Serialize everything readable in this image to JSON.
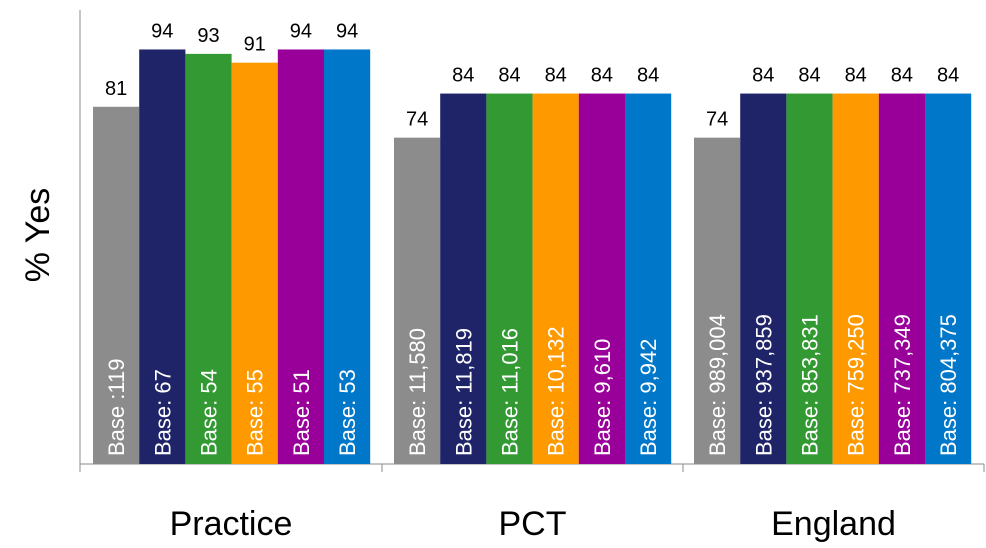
{
  "chart_data": {
    "type": "bar",
    "ylabel": "% Yes",
    "ylim": [
      0,
      100
    ],
    "categories": [
      "Practice",
      "PCT",
      "England"
    ],
    "series_colors": [
      "#8c8c8c",
      "#1f2468",
      "#339933",
      "#ff9900",
      "#990099",
      "#0077c8"
    ],
    "groups": [
      {
        "category": "Practice",
        "values": [
          81,
          94,
          93,
          91,
          94,
          94
        ],
        "bases": [
          "Base :119",
          "Base: 67",
          "Base: 54",
          "Base: 55",
          "Base: 51",
          "Base: 53"
        ]
      },
      {
        "category": "PCT",
        "values": [
          74,
          84,
          84,
          84,
          84,
          84
        ],
        "bases": [
          "Base: 11,580",
          "Base: 11,819",
          "Base: 11,016",
          "Base: 10,132",
          "Base: 9,610",
          "Base: 9,942"
        ]
      },
      {
        "category": "England",
        "values": [
          74,
          84,
          84,
          84,
          84,
          84
        ],
        "bases": [
          "Base: 989,004",
          "Base: 937,859",
          "Base: 853,831",
          "Base: 759,250",
          "Base: 737,349",
          "Base: 804,375"
        ]
      }
    ]
  }
}
